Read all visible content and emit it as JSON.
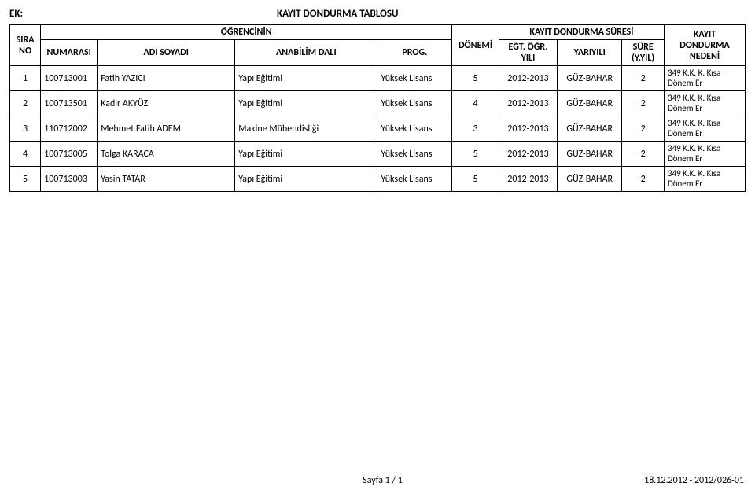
{
  "header": {
    "ek_label": "EK:",
    "title": "KAYIT DONDURMA TABLOSU"
  },
  "table": {
    "top_headers": {
      "ogrencinin": "ÖĞRENCİNİN",
      "kayit_dondurma_suresi": "KAYIT DONDURMA SÜRESİ",
      "kayit_dondurma_nedeni": "KAYIT DONDURMA NEDENİ"
    },
    "sub_headers": {
      "sira_no": "SIRA NO",
      "numarasi": "NUMARASI",
      "adi_soyadi": "ADI SOYADI",
      "anabilim_dali": "ANABİLİM DALI",
      "prog": "PROG.",
      "donemi": "DÖNEMİ",
      "egt_ogr_yili": "EĞT. ÖĞR. YILI",
      "yariyili": "YARIYILI",
      "sure": "SÜRE (Y.YIL)"
    },
    "rows": [
      {
        "sira_no": "1",
        "numarasi": "100713001",
        "adi_soyadi": "Fatih YAZICI",
        "anabilim_dali": "Yapı Eğitimi",
        "prog": "Yüksek Lisans",
        "donemi": "5",
        "egt_ogr_yili": "2012-2013",
        "yariyili": "GÜZ-BAHAR",
        "sure": "2",
        "neden": "349 K.K. K. Kısa Dönem Er"
      },
      {
        "sira_no": "2",
        "numarasi": "100713501",
        "adi_soyadi": "Kadir AKYÜZ",
        "anabilim_dali": "Yapı Eğitimi",
        "prog": "Yüksek Lisans",
        "donemi": "4",
        "egt_ogr_yili": "2012-2013",
        "yariyili": "GÜZ-BAHAR",
        "sure": "2",
        "neden": "349 K.K. K. Kısa Dönem Er"
      },
      {
        "sira_no": "3",
        "numarasi": "110712002",
        "adi_soyadi": "Mehmet Fatih ADEM",
        "anabilim_dali": "Makine Mühendisliği",
        "prog": "Yüksek Lisans",
        "donemi": "3",
        "egt_ogr_yili": "2012-2013",
        "yariyili": "GÜZ-BAHAR",
        "sure": "2",
        "neden": "349 K.K. K. Kısa Dönem Er"
      },
      {
        "sira_no": "4",
        "numarasi": "100713005",
        "adi_soyadi": "Tolga KARACA",
        "anabilim_dali": "Yapı Eğitimi",
        "prog": "Yüksek Lisans",
        "donemi": "5",
        "egt_ogr_yili": "2012-2013",
        "yariyili": "GÜZ-BAHAR",
        "sure": "2",
        "neden": "349 K.K. K. Kısa Dönem Er"
      },
      {
        "sira_no": "5",
        "numarasi": "100713003",
        "adi_soyadi": "Yasin TATAR",
        "anabilim_dali": "Yapı Eğitimi",
        "prog": "Yüksek Lisans",
        "donemi": "5",
        "egt_ogr_yili": "2012-2013",
        "yariyili": "GÜZ-BAHAR",
        "sure": "2",
        "neden": "349 K.K. K. Kısa Dönem Er"
      }
    ]
  },
  "footer": {
    "page_text": "Sayfa 1 / 1",
    "date_doc": "18.12.2012 - 2012/026-01"
  }
}
